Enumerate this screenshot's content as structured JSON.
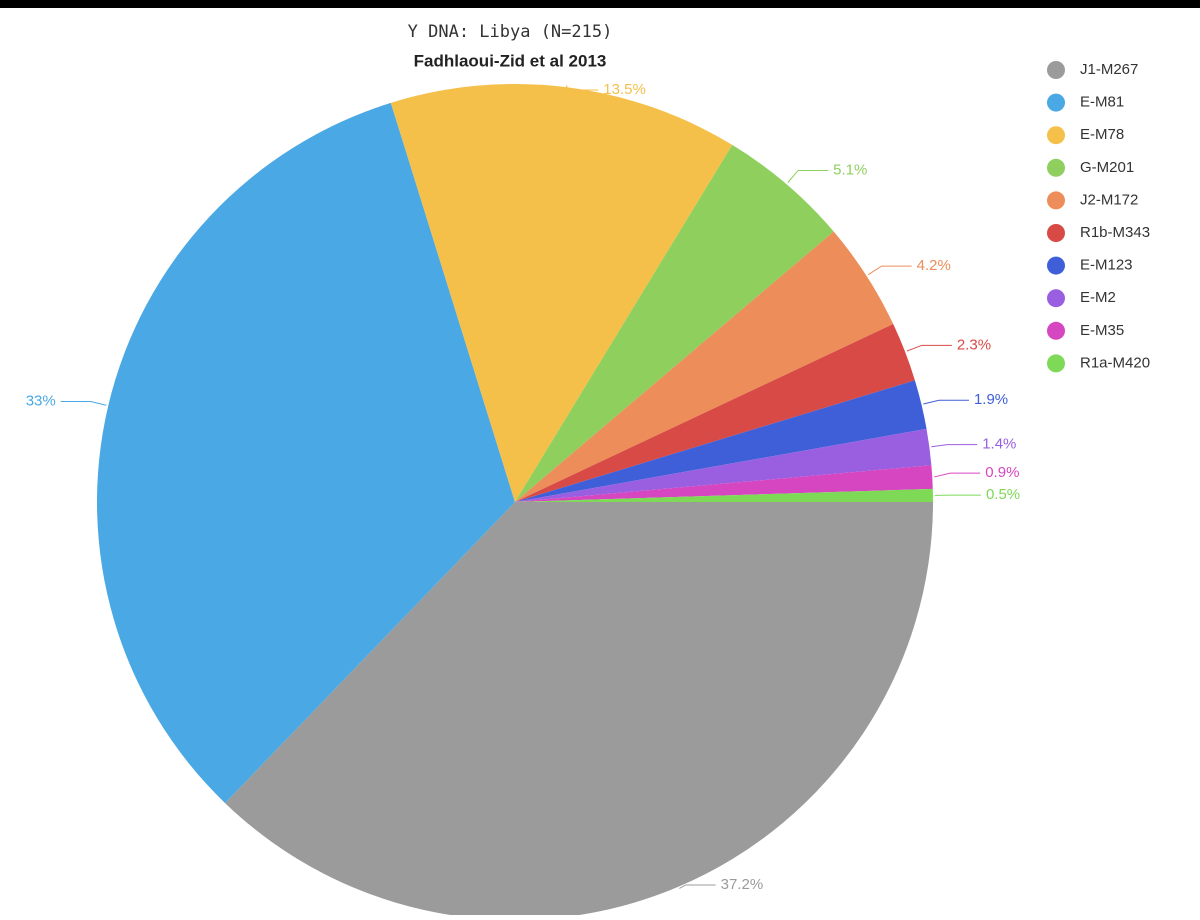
{
  "chart_data": {
    "type": "pie",
    "title": "Y DNA: Libya (N=215)",
    "subtitle": "Fadhlaoui-Zid et al 2013",
    "categories": [
      "J1-M267",
      "E-M81",
      "E-M78",
      "G-M201",
      "J2-M172",
      "R1b-M343",
      "E-M123",
      "E-M2",
      "E-M35",
      "R1a-M420"
    ],
    "values": [
      37.2,
      33,
      13.5,
      5.1,
      4.2,
      2.3,
      1.9,
      1.4,
      0.9,
      0.5
    ],
    "value_labels": [
      "37.2%",
      "33%",
      "13.5%",
      "5.1%",
      "4.2%",
      "2.3%",
      "1.9%",
      "1.4%",
      "0.9%",
      "0.5%"
    ],
    "colors": [
      "#9b9b9b",
      "#4aa8e4",
      "#f4c04a",
      "#8fcf5e",
      "#ec8d5a",
      "#d84a46",
      "#3f5fd8",
      "#9a5fe0",
      "#d646c0",
      "#7ed957"
    ],
    "legend": "right"
  }
}
